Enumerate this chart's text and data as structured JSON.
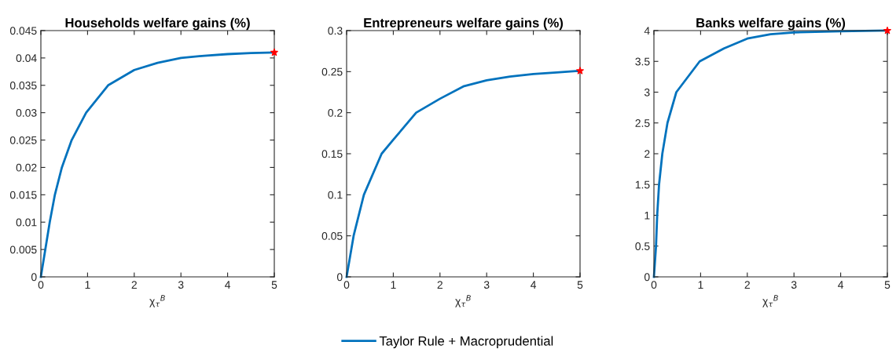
{
  "chart_data": [
    {
      "type": "line",
      "title": "Households welfare gains (%)",
      "xlabel": "χ$_{τ}$$^{B}$",
      "xlim": [
        0,
        5
      ],
      "xticks": [
        0,
        1,
        2,
        3,
        4,
        5
      ],
      "ylim": [
        0,
        0.045
      ],
      "yticks": [
        0,
        0.005,
        0.01,
        0.015,
        0.02,
        0.025,
        0.03,
        0.035,
        0.04,
        0.045
      ],
      "legend": "bottom",
      "series": [
        {
          "name": "Taylor Rule + Macroprudential",
          "color": "#0072bd",
          "marker": "none",
          "x": [
            0,
            0.19,
            0.3,
            0.45,
            0.66,
            0.97,
            1.44,
            2,
            2.5,
            3,
            3.5,
            4,
            4.5,
            5
          ],
          "values": [
            0,
            0.01,
            0.015,
            0.02,
            0.025,
            0.03,
            0.035,
            0.0378,
            0.0391,
            0.04,
            0.0404,
            0.0407,
            0.0409,
            0.041
          ]
        },
        {
          "type": "scatter",
          "color": "#ff0000",
          "marker": "star",
          "x": [
            5
          ],
          "values": [
            0.041
          ]
        }
      ]
    },
    {
      "type": "line",
      "title": "Entrepreneurs welfare gains (%)",
      "xlabel": "χ$_{τ}$$^{B}$",
      "xlim": [
        0,
        5
      ],
      "xticks": [
        0,
        1,
        2,
        3,
        4,
        5
      ],
      "ylim": [
        0,
        0.3
      ],
      "yticks": [
        0,
        0.05,
        0.1,
        0.15,
        0.2,
        0.25,
        0.3
      ],
      "series": [
        {
          "color": "#0072bd",
          "marker": "none",
          "x": [
            0,
            0.15,
            0.37,
            0.75,
            1,
            1.49,
            2,
            2.5,
            3,
            3.5,
            4,
            4.5,
            5
          ],
          "values": [
            0,
            0.05,
            0.1,
            0.15,
            0.167,
            0.2,
            0.217,
            0.232,
            0.2395,
            0.244,
            0.247,
            0.249,
            0.251
          ]
        },
        {
          "type": "scatter",
          "color": "#ff0000",
          "marker": "star",
          "x": [
            5
          ],
          "values": [
            0.251
          ]
        }
      ]
    },
    {
      "type": "line",
      "title": "Banks welfare gains (%)",
      "xlabel": "χ$_{τ}$$^{B}$",
      "xlim": [
        0,
        5
      ],
      "xticks": [
        0,
        1,
        2,
        3,
        4,
        5
      ],
      "ylim": [
        0,
        4
      ],
      "yticks": [
        0,
        0.5,
        1,
        1.5,
        2,
        2.5,
        3,
        3.5,
        4
      ],
      "series": [
        {
          "color": "#0072bd",
          "marker": "none",
          "x": [
            0,
            0.045,
            0.07,
            0.11,
            0.18,
            0.29,
            0.48,
            0.98,
            1.5,
            2,
            2.5,
            3,
            4,
            5
          ],
          "values": [
            0,
            0.5,
            1,
            1.5,
            2,
            2.5,
            3,
            3.5,
            3.71,
            3.87,
            3.94,
            3.97,
            3.99,
            4
          ]
        },
        {
          "type": "scatter",
          "color": "#ff0000",
          "marker": "star",
          "x": [
            5
          ],
          "values": [
            4
          ]
        }
      ]
    }
  ]
}
